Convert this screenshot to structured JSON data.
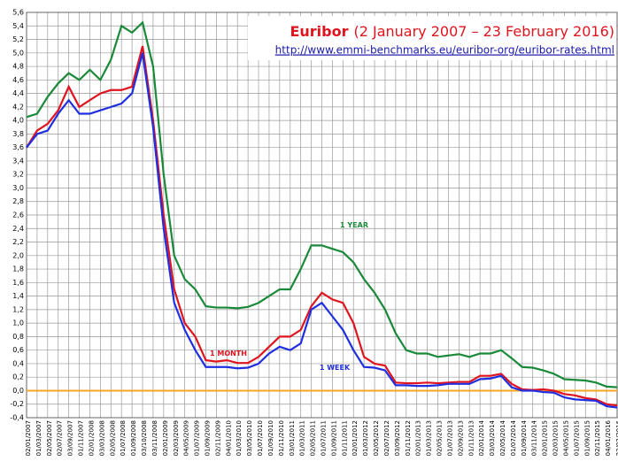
{
  "chart_data": {
    "type": "line",
    "title": "Euribor",
    "subtitle": "(2 January 2007 – 23 February 2016)",
    "source": "http://www.emmi-benchmarks.eu/euribor-org/euribor-rates.html",
    "categories": [
      "02/01/2007",
      "01/03/2007",
      "02/05/2007",
      "02/07/2007",
      "03/09/2007",
      "01/11/2007",
      "02/01/2008",
      "03/03/2008",
      "02/05/2008",
      "01/07/2008",
      "01/09/2008",
      "03/10/2008",
      "03/11/2008",
      "02/01/2009",
      "02/03/2009",
      "04/05/2009",
      "01/07/2009",
      "01/09/2009",
      "02/11/2009",
      "04/01/2010",
      "01/03/2010",
      "03/05/2010",
      "01/07/2010",
      "01/09/2010",
      "01/11/2010",
      "03/01/2011",
      "01/03/2011",
      "02/05/2011",
      "01/07/2011",
      "01/09/2011",
      "01/11/2011",
      "02/01/2012",
      "01/03/2012",
      "02/05/2012",
      "02/07/2012",
      "03/09/2012",
      "01/11/2012",
      "02/01/2013",
      "01/03/2013",
      "02/05/2013",
      "01/07/2013",
      "02/09/2013",
      "01/11/2013",
      "02/01/2014",
      "03/03/2014",
      "02/05/2014",
      "01/07/2014",
      "01/09/2014",
      "03/11/2014",
      "02/01/2015",
      "02/03/2015",
      "04/05/2015",
      "01/07/2015",
      "01/09/2015",
      "02/11/2015",
      "04/01/2016",
      "23/02/2016"
    ],
    "series": [
      {
        "name": "1 YEAR",
        "color": "#1a8a3a",
        "values": [
          4.05,
          4.1,
          4.35,
          4.55,
          4.7,
          4.6,
          4.75,
          4.6,
          4.9,
          5.4,
          5.3,
          5.45,
          4.8,
          3.2,
          2.0,
          1.65,
          1.5,
          1.25,
          1.23,
          1.23,
          1.22,
          1.24,
          1.3,
          1.4,
          1.5,
          1.5,
          1.8,
          2.15,
          2.15,
          2.1,
          2.05,
          1.9,
          1.65,
          1.45,
          1.2,
          0.85,
          0.6,
          0.55,
          0.55,
          0.5,
          0.52,
          0.54,
          0.5,
          0.55,
          0.55,
          0.6,
          0.48,
          0.35,
          0.34,
          0.3,
          0.25,
          0.17,
          0.16,
          0.15,
          0.12,
          0.06,
          0.05
        ]
      },
      {
        "name": "1 MONTH",
        "color": "#e0141e",
        "values": [
          3.6,
          3.85,
          3.95,
          4.15,
          4.5,
          4.2,
          4.3,
          4.4,
          4.45,
          4.45,
          4.5,
          5.1,
          4.0,
          2.6,
          1.5,
          1.0,
          0.8,
          0.45,
          0.43,
          0.45,
          0.41,
          0.41,
          0.5,
          0.65,
          0.8,
          0.8,
          0.9,
          1.25,
          1.45,
          1.35,
          1.3,
          1.0,
          0.5,
          0.4,
          0.37,
          0.12,
          0.11,
          0.11,
          0.12,
          0.11,
          0.12,
          0.13,
          0.13,
          0.22,
          0.22,
          0.25,
          0.1,
          0.02,
          0.01,
          0.02,
          0.0,
          -0.05,
          -0.07,
          -0.11,
          -0.13,
          -0.2,
          -0.22
        ]
      },
      {
        "name": "1 WEEK",
        "color": "#1f2fe0",
        "values": [
          3.6,
          3.8,
          3.85,
          4.1,
          4.3,
          4.1,
          4.1,
          4.15,
          4.2,
          4.25,
          4.4,
          5.0,
          3.9,
          2.4,
          1.3,
          0.9,
          0.6,
          0.35,
          0.35,
          0.35,
          0.33,
          0.34,
          0.4,
          0.55,
          0.65,
          0.6,
          0.7,
          1.2,
          1.3,
          1.1,
          0.9,
          0.6,
          0.35,
          0.34,
          0.3,
          0.08,
          0.08,
          0.07,
          0.07,
          0.08,
          0.1,
          0.1,
          0.1,
          0.17,
          0.18,
          0.22,
          0.05,
          0.0,
          0.0,
          -0.02,
          -0.03,
          -0.1,
          -0.13,
          -0.14,
          -0.15,
          -0.23,
          -0.25
        ]
      }
    ],
    "reference_line": {
      "value": 0,
      "color": "#f5a623"
    },
    "ylim": [
      -0.4,
      5.6
    ],
    "yticks": [
      {
        "value": -0.4,
        "label": "-0,4"
      },
      {
        "value": -0.2,
        "label": "-0,2"
      },
      {
        "value": 0,
        "label": "0,0"
      },
      {
        "value": 0.2,
        "label": "0,2"
      },
      {
        "value": 0.4,
        "label": "0,4"
      },
      {
        "value": 0.6,
        "label": "0,6"
      },
      {
        "value": 0.8,
        "label": "0,8"
      },
      {
        "value": 1,
        "label": "1,0"
      },
      {
        "value": 1.2,
        "label": "1,2"
      },
      {
        "value": 1.4,
        "label": "1,4"
      },
      {
        "value": 1.6,
        "label": "1,6"
      },
      {
        "value": 1.8,
        "label": "1,8"
      },
      {
        "value": 2,
        "label": "2,0"
      },
      {
        "value": 2.2,
        "label": "2,2"
      },
      {
        "value": 2.4,
        "label": "2,4"
      },
      {
        "value": 2.6,
        "label": "2,6"
      },
      {
        "value": 2.8,
        "label": "2,8"
      },
      {
        "value": 3,
        "label": "3,0"
      },
      {
        "value": 3.2,
        "label": "3,2"
      },
      {
        "value": 3.4,
        "label": "3,4"
      },
      {
        "value": 3.6,
        "label": "3,6"
      },
      {
        "value": 3.8,
        "label": "3,8"
      },
      {
        "value": 4,
        "label": "4,0"
      },
      {
        "value": 4.2,
        "label": "4,2"
      },
      {
        "value": 4.4,
        "label": "4,4"
      },
      {
        "value": 4.6,
        "label": "4,6"
      },
      {
        "value": 4.8,
        "label": "4,8"
      },
      {
        "value": 5,
        "label": "5,0"
      },
      {
        "value": 5.2,
        "label": "5,2"
      },
      {
        "value": 5.4,
        "label": "5,4"
      },
      {
        "value": 5.6,
        "label": "5,6"
      }
    ],
    "grid": true
  }
}
